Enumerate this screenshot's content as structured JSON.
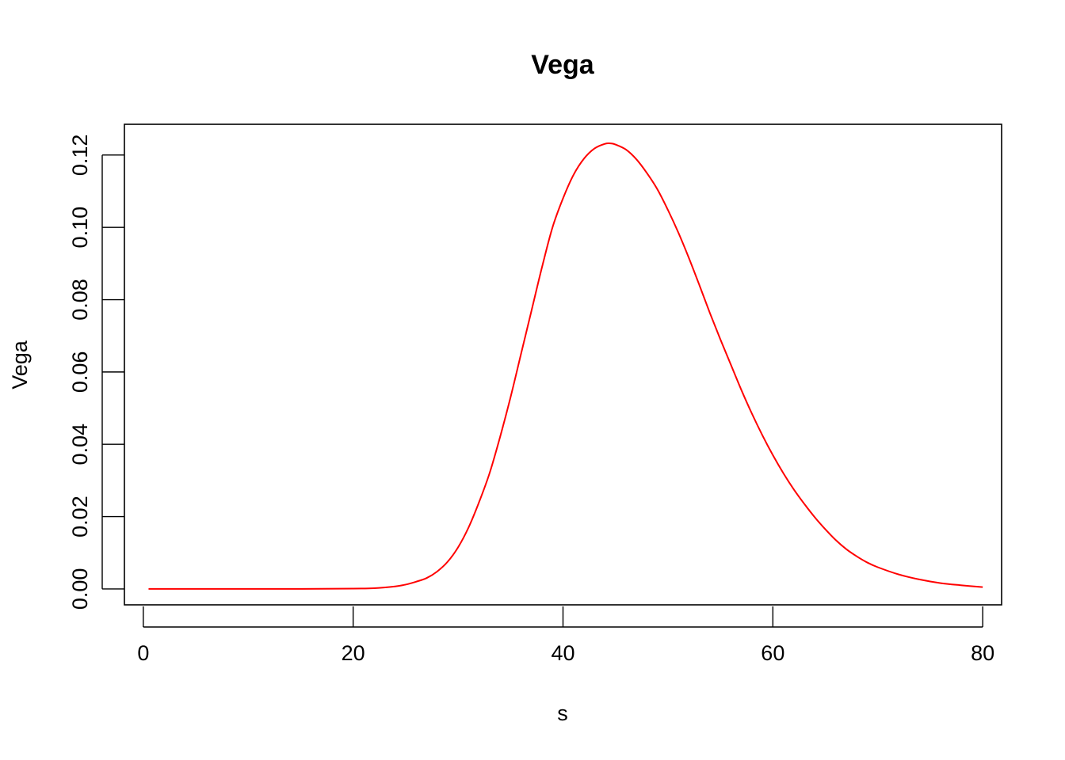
{
  "chart_data": {
    "type": "line",
    "title": "Vega",
    "xlabel": "s",
    "ylabel": "Vega",
    "xlim": [
      -1.8,
      81.8
    ],
    "ylim": [
      -0.0044,
      0.1285
    ],
    "x_ticks": [
      0,
      20,
      40,
      60,
      80
    ],
    "x_tick_labels": [
      "0",
      "20",
      "40",
      "60",
      "80"
    ],
    "y_ticks": [
      0,
      0.02,
      0.04,
      0.06,
      0.08,
      0.1,
      0.12
    ],
    "y_tick_labels": [
      "0.00",
      "0.02",
      "0.04",
      "0.06",
      "0.08",
      "0.10",
      "0.12"
    ],
    "grid": false,
    "legend": "none",
    "series": [
      {
        "color": "#ff0000",
        "x": [
          0.5,
          5,
          10,
          15,
          20,
          22,
          24,
          25,
          26,
          27,
          28,
          29,
          30,
          31,
          32,
          33,
          34,
          35,
          36,
          37,
          38,
          39,
          40,
          41,
          42,
          43,
          44,
          44.6,
          45,
          46,
          47,
          48,
          49,
          50,
          51,
          52,
          53,
          54,
          55,
          56,
          57,
          58,
          59,
          60,
          61,
          62,
          63,
          64,
          65,
          66,
          67,
          68,
          69,
          70,
          72,
          74,
          76,
          78,
          80
        ],
        "y": [
          0,
          0,
          0,
          0,
          0.0001,
          0.0002,
          0.0007,
          0.0012,
          0.002,
          0.003,
          0.0048,
          0.0075,
          0.0115,
          0.017,
          0.024,
          0.032,
          0.042,
          0.053,
          0.065,
          0.077,
          0.089,
          0.1,
          0.108,
          0.1145,
          0.119,
          0.1218,
          0.1231,
          0.1232,
          0.1229,
          0.1215,
          0.1188,
          0.115,
          0.1105,
          0.1048,
          0.0985,
          0.0915,
          0.084,
          0.0763,
          0.069,
          0.062,
          0.055,
          0.0485,
          0.0425,
          0.037,
          0.032,
          0.0275,
          0.0235,
          0.0198,
          0.0165,
          0.0135,
          0.011,
          0.009,
          0.0073,
          0.006,
          0.004,
          0.0026,
          0.0016,
          0.001,
          0.0005
        ]
      }
    ]
  }
}
